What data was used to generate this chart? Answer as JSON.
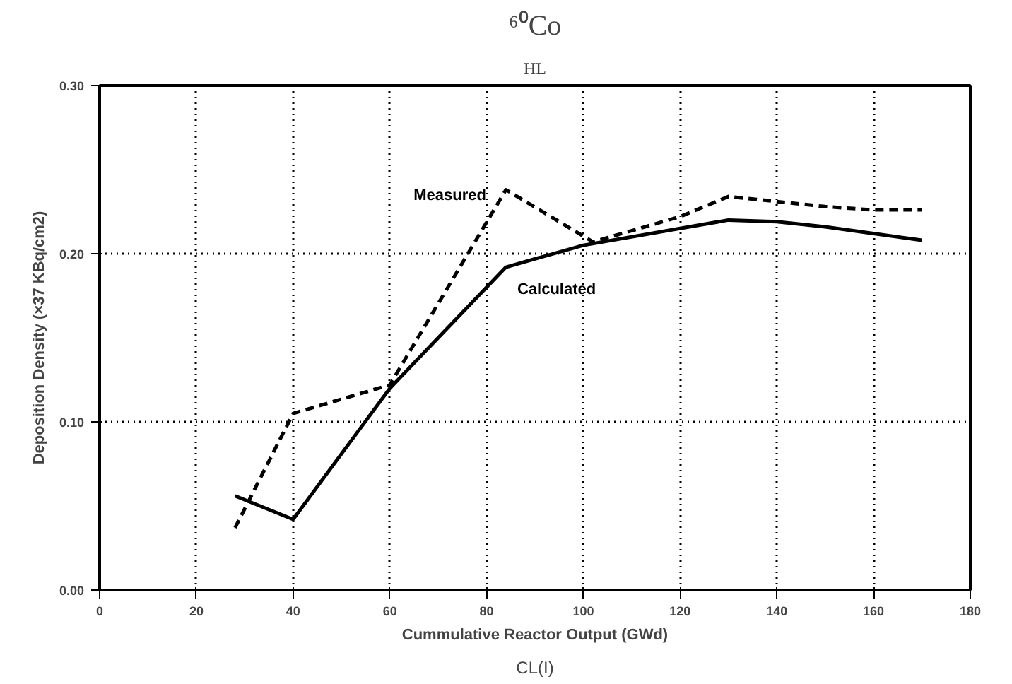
{
  "chart_data": {
    "type": "line",
    "title": "⁶⁰Co",
    "subtitle": "HL",
    "xlabel": "Cummulative Reactor Output (GWd)",
    "ylabel": "Deposition Density (×37 KBq/cm2)",
    "annotations": [
      "CL(I)"
    ],
    "series": [
      {
        "name": "Measured",
        "color": "#000000",
        "line_style": "dashed",
        "x": [
          28,
          40,
          60,
          84,
          102,
          120,
          130,
          140,
          150,
          160,
          170
        ],
        "values": [
          0.037,
          0.105,
          0.122,
          0.238,
          0.207,
          0.222,
          0.234,
          0.231,
          0.228,
          0.226,
          0.226
        ]
      },
      {
        "name": "Calculated",
        "color": "#000000",
        "line_style": "solid",
        "x": [
          28,
          40,
          60,
          84,
          100,
          120,
          130,
          140,
          150,
          160,
          170
        ],
        "values": [
          0.056,
          0.042,
          0.12,
          0.192,
          0.205,
          0.215,
          0.22,
          0.219,
          0.216,
          0.212,
          0.208
        ]
      }
    ],
    "xlim": [
      0,
      180
    ],
    "xticks": [
      0,
      20,
      40,
      60,
      80,
      100,
      120,
      140,
      160,
      180
    ],
    "ylim": [
      0,
      0.3
    ],
    "yticks": [
      {
        "value": 0,
        "label": "0.00"
      },
      {
        "value": 0.1,
        "label": "0.10"
      },
      {
        "value": 0.2,
        "label": "0.20"
      },
      {
        "value": 0.3,
        "label": "0.30"
      }
    ],
    "grid": true,
    "marker": "none"
  }
}
